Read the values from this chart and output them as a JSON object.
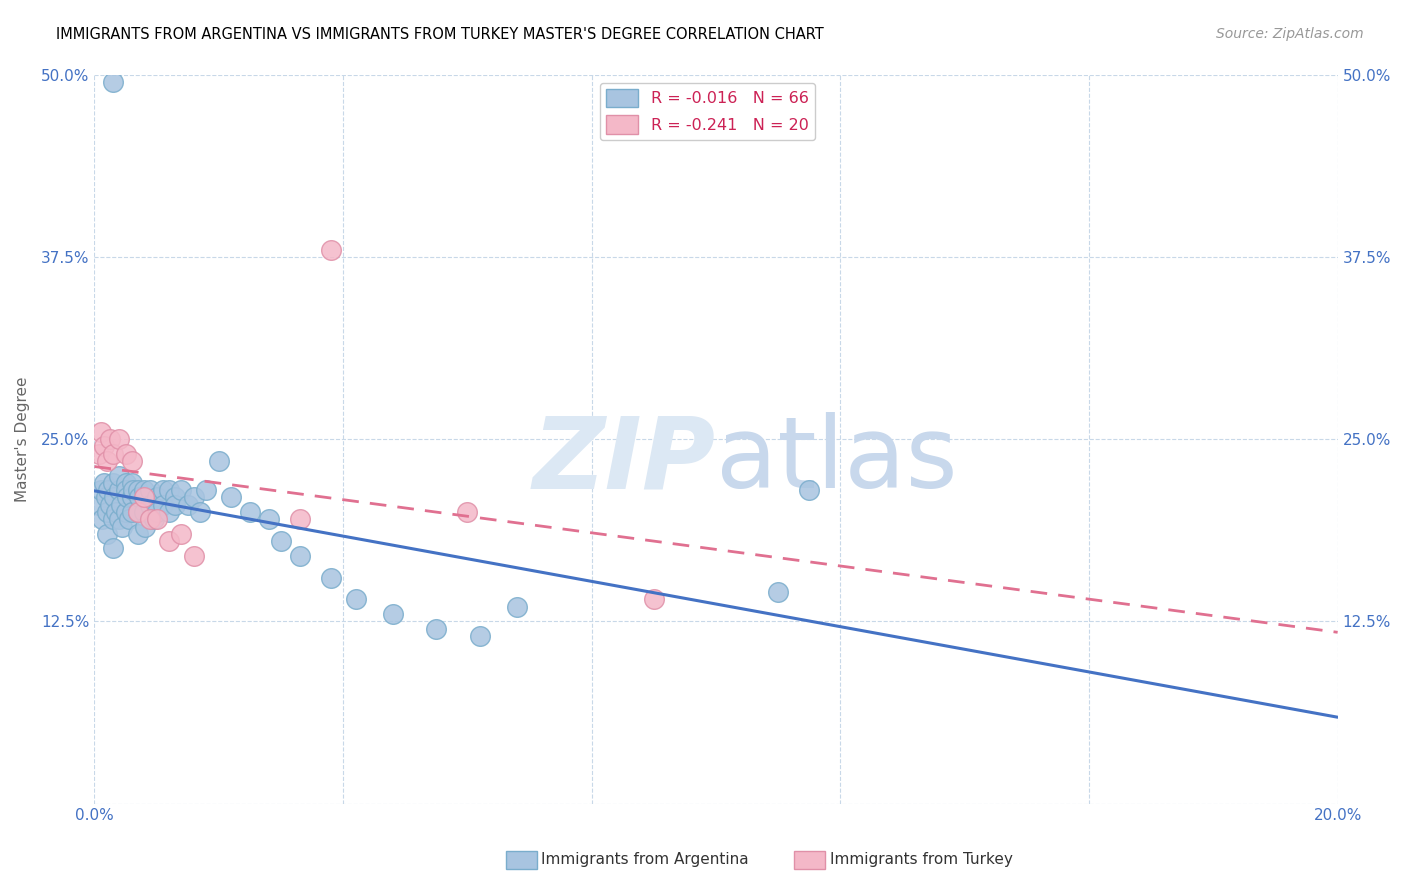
{
  "title": "IMMIGRANTS FROM ARGENTINA VS IMMIGRANTS FROM TURKEY MASTER'S DEGREE CORRELATION CHART",
  "source": "Source: ZipAtlas.com",
  "ylabel": "Master's Degree",
  "xlim": [
    0.0,
    0.2
  ],
  "ylim": [
    0.0,
    0.5
  ],
  "xticks": [
    0.0,
    0.04,
    0.08,
    0.12,
    0.16,
    0.2
  ],
  "yticks": [
    0.0,
    0.125,
    0.25,
    0.375,
    0.5
  ],
  "argentina_color": "#a8c4e0",
  "turkey_color": "#f4b8c8",
  "argentina_edge_color": "#7aadcc",
  "turkey_edge_color": "#e090a8",
  "argentina_R": -0.016,
  "argentina_N": 66,
  "turkey_R": -0.241,
  "turkey_N": 20,
  "watermark_zip": "ZIP",
  "watermark_atlas": "atlas",
  "line_color_argentina": "#4472c4",
  "line_color_turkey": "#e07090",
  "background_color": "#ffffff",
  "grid_color": "#c8d8e8",
  "title_color": "#000000",
  "axis_label_color": "#666666",
  "tick_label_color": "#4472c4",
  "watermark_color": "#dce8f4",
  "argentina_scatter_x": [
    0.0008,
    0.001,
    0.0012,
    0.0015,
    0.0018,
    0.002,
    0.002,
    0.0022,
    0.0025,
    0.003,
    0.003,
    0.003,
    0.0032,
    0.0035,
    0.004,
    0.004,
    0.004,
    0.0042,
    0.0045,
    0.005,
    0.005,
    0.005,
    0.0052,
    0.0055,
    0.006,
    0.006,
    0.006,
    0.0062,
    0.007,
    0.007,
    0.007,
    0.0072,
    0.008,
    0.008,
    0.0082,
    0.009,
    0.009,
    0.0095,
    0.01,
    0.01,
    0.011,
    0.011,
    0.012,
    0.012,
    0.013,
    0.013,
    0.014,
    0.015,
    0.016,
    0.017,
    0.018,
    0.02,
    0.022,
    0.025,
    0.028,
    0.03,
    0.033,
    0.038,
    0.042,
    0.048,
    0.055,
    0.062,
    0.068,
    0.11,
    0.115,
    0.003
  ],
  "argentina_scatter_y": [
    0.205,
    0.215,
    0.195,
    0.22,
    0.21,
    0.2,
    0.185,
    0.215,
    0.205,
    0.22,
    0.195,
    0.175,
    0.21,
    0.2,
    0.215,
    0.195,
    0.225,
    0.205,
    0.19,
    0.22,
    0.2,
    0.215,
    0.21,
    0.195,
    0.22,
    0.21,
    0.2,
    0.215,
    0.215,
    0.2,
    0.185,
    0.21,
    0.215,
    0.2,
    0.19,
    0.215,
    0.205,
    0.195,
    0.21,
    0.2,
    0.215,
    0.205,
    0.215,
    0.2,
    0.21,
    0.205,
    0.215,
    0.205,
    0.21,
    0.2,
    0.215,
    0.235,
    0.21,
    0.2,
    0.195,
    0.18,
    0.17,
    0.155,
    0.14,
    0.13,
    0.12,
    0.115,
    0.135,
    0.145,
    0.215,
    0.495
  ],
  "turkey_scatter_x": [
    0.0008,
    0.001,
    0.0015,
    0.002,
    0.0025,
    0.003,
    0.004,
    0.005,
    0.006,
    0.007,
    0.008,
    0.009,
    0.01,
    0.012,
    0.014,
    0.016,
    0.033,
    0.038,
    0.06,
    0.09
  ],
  "turkey_scatter_y": [
    0.24,
    0.255,
    0.245,
    0.235,
    0.25,
    0.24,
    0.25,
    0.24,
    0.235,
    0.2,
    0.21,
    0.195,
    0.195,
    0.18,
    0.185,
    0.17,
    0.195,
    0.38,
    0.2,
    0.14
  ]
}
